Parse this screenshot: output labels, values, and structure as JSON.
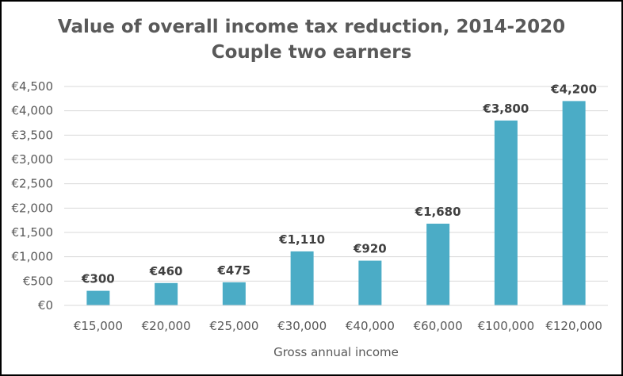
{
  "chart_data": {
    "type": "bar",
    "title": "Value of overall income tax reduction, 2014-2020",
    "subtitle": "Couple two earners",
    "xlabel": "Gross annual income",
    "ylabel": "",
    "categories": [
      "€15,000",
      "€20,000",
      "€25,000",
      "€30,000",
      "€40,000",
      "€60,000",
      "€100,000",
      "€120,000"
    ],
    "values": [
      300,
      460,
      475,
      1110,
      920,
      1680,
      3800,
      4200
    ],
    "data_labels": [
      "€300",
      "€460",
      "€475",
      "€1,110",
      "€920",
      "€1,680",
      "€3,800",
      "€4,200"
    ],
    "ylim": [
      0,
      4500
    ],
    "y_ticks": [
      0,
      500,
      1000,
      1500,
      2000,
      2500,
      3000,
      3500,
      4000,
      4500
    ],
    "y_tick_labels": [
      "€0",
      "€500",
      "€1,000",
      "€1,500",
      "€2,000",
      "€2,500",
      "€3,000",
      "€3,500",
      "€4,000",
      "€4,500"
    ],
    "grid": true,
    "legend": "none",
    "colors": {
      "bar": "#4BACC6",
      "grid": "#D9D9D9",
      "text": "#595959",
      "data_label": "#404040"
    }
  }
}
